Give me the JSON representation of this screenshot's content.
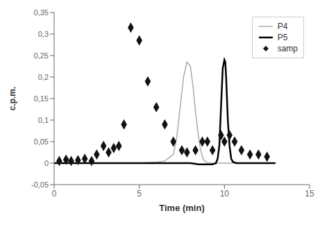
{
  "chart_data": {
    "type": "line",
    "xlabel": "Time (min)",
    "ylabel": "c.p.m.",
    "xlim": [
      0,
      15
    ],
    "ylim": [
      -0.05,
      0.35
    ],
    "xticks": [
      0,
      5,
      10,
      15
    ],
    "yticks": [
      {
        "value": -0.05,
        "label": "-0,05"
      },
      0,
      {
        "value": 0.05,
        "label": "0,05"
      },
      {
        "value": 0.1,
        "label": "0,1"
      },
      {
        "value": 0.15,
        "label": "0,15"
      },
      {
        "value": 0.2,
        "label": "0,2"
      },
      {
        "value": 0.25,
        "label": "0,25"
      },
      {
        "value": 0.3,
        "label": "0,3"
      },
      {
        "value": 0.35,
        "label": "0,35"
      }
    ],
    "grid": false,
    "legend": "upper right",
    "series": [
      {
        "name": "P4",
        "type": "line",
        "color": "#aaaaaa",
        "x": [
          0.0,
          1.0,
          2.0,
          3.0,
          4.0,
          5.0,
          6.0,
          6.5,
          7.0,
          7.2,
          7.4,
          7.6,
          7.8,
          8.0,
          8.15,
          8.3,
          8.45,
          8.6,
          8.75,
          8.9,
          9.0,
          9.2,
          9.4,
          9.6,
          10.0,
          11.0,
          12.0
        ],
        "values": [
          0.0,
          0.0,
          0.0,
          0.0,
          0.0,
          0.0,
          0.002,
          0.005,
          0.02,
          0.06,
          0.13,
          0.2,
          0.235,
          0.225,
          0.18,
          0.12,
          0.07,
          0.03,
          0.01,
          0.003,
          0.001,
          0.0,
          0.0,
          0.0,
          0.0,
          0.0,
          0.0
        ]
      },
      {
        "name": "P5",
        "type": "line",
        "color": "#000000",
        "x": [
          0.0,
          1.0,
          2.0,
          3.0,
          4.0,
          5.0,
          6.0,
          7.0,
          8.0,
          8.5,
          9.0,
          9.3,
          9.5,
          9.6,
          9.7,
          9.8,
          9.9,
          10.0,
          10.05,
          10.1,
          10.2,
          10.3,
          10.4,
          10.5,
          10.7,
          11.0,
          12.0,
          13.0
        ],
        "values": [
          0.0,
          0.0,
          0.0,
          0.0,
          0.0,
          0.0,
          0.0,
          0.0,
          0.0,
          -0.003,
          -0.003,
          -0.003,
          0.0,
          0.01,
          0.04,
          0.13,
          0.22,
          0.24,
          0.235,
          0.2,
          0.1,
          0.04,
          0.01,
          0.003,
          0.0,
          0.0,
          0.0,
          0.0
        ]
      },
      {
        "name": "samp",
        "type": "scatter",
        "color": "#111111",
        "marker": "diamond",
        "x": [
          0.3,
          0.7,
          1.0,
          1.4,
          1.8,
          2.2,
          2.5,
          2.9,
          3.2,
          3.5,
          3.8,
          4.1,
          4.5,
          5.0,
          5.5,
          6.0,
          6.5,
          7.0,
          7.5,
          7.8,
          8.3,
          8.7,
          9.0,
          9.3,
          9.8,
          10.0,
          10.3,
          10.6,
          11.0,
          11.5,
          12.0,
          12.5
        ],
        "values": [
          0.005,
          0.008,
          0.005,
          0.007,
          0.01,
          0.005,
          0.02,
          0.04,
          0.025,
          0.035,
          0.04,
          0.09,
          0.315,
          0.285,
          0.19,
          0.13,
          0.09,
          0.05,
          0.03,
          0.025,
          0.03,
          0.05,
          0.05,
          0.03,
          0.065,
          0.05,
          0.065,
          0.05,
          0.03,
          0.02,
          0.02,
          0.015
        ]
      }
    ]
  }
}
